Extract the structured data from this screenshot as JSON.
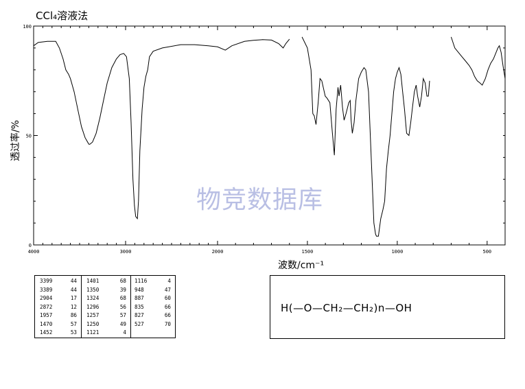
{
  "chart_data": {
    "type": "line",
    "title": "CCl₄溶液法",
    "xlabel": "波数/cm⁻¹",
    "ylabel": "透过率/%",
    "xlim": [
      4000,
      400
    ],
    "ylim": [
      0,
      100
    ],
    "x_ticks": [
      "4000",
      "3000",
      "2000",
      "1500",
      "1000",
      "500"
    ],
    "y_ticks": [
      "100",
      "50",
      "0"
    ],
    "series": [
      {
        "segments": [
          [
            [
              4000,
              91
            ],
            [
              3950,
              92.5
            ],
            [
              3850,
              93
            ],
            [
              3760,
              93
            ],
            [
              3720,
              90
            ],
            [
              3680,
              85
            ],
            [
              3650,
              80
            ],
            [
              3620,
              78
            ],
            [
              3600,
              76
            ],
            [
              3560,
              70
            ],
            [
              3520,
              62
            ],
            [
              3480,
              54
            ],
            [
              3440,
              49
            ],
            [
              3399,
              46
            ],
            [
              3389,
              46
            ],
            [
              3360,
              47
            ],
            [
              3320,
              51
            ],
            [
              3280,
              58
            ],
            [
              3240,
              66
            ],
            [
              3200,
              74
            ],
            [
              3150,
              81
            ],
            [
              3100,
              85
            ],
            [
              3060,
              87
            ],
            [
              3020,
              87.5
            ],
            [
              2990,
              86
            ],
            [
              2960,
              76
            ],
            [
              2940,
              56
            ],
            [
              2920,
              30
            ],
            [
              2904,
              18
            ],
            [
              2890,
              13
            ],
            [
              2872,
              12
            ],
            [
              2860,
              20
            ],
            [
              2845,
              43
            ],
            [
              2820,
              62
            ],
            [
              2800,
              72
            ],
            [
              2780,
              77
            ],
            [
              2760,
              80
            ],
            [
              2740,
              86
            ],
            [
              2700,
              88.5
            ],
            [
              2600,
              90
            ],
            [
              2400,
              91.5
            ],
            [
              2250,
              91.5
            ],
            [
              2100,
              91
            ],
            [
              2000,
              90.5
            ],
            [
              1957,
              89
            ],
            [
              1920,
              91
            ],
            [
              1850,
              93
            ],
            [
              1800,
              93.5
            ],
            [
              1750,
              93.8
            ],
            [
              1700,
              93.6
            ],
            [
              1660,
              92
            ],
            [
              1635,
              90
            ],
            [
              1620,
              92
            ],
            [
              1600,
              94
            ]
          ],
          [
            [
              1530,
              95
            ],
            [
              1500,
              90
            ],
            [
              1480,
              80
            ],
            [
              1470,
              60
            ],
            [
              1462,
              59
            ],
            [
              1452,
              55
            ],
            [
              1440,
              65
            ],
            [
              1430,
              76
            ],
            [
              1420,
              75
            ],
            [
              1401,
              68
            ],
            [
              1390,
              67
            ],
            [
              1375,
              65
            ],
            [
              1362,
              52
            ],
            [
              1350,
              41
            ],
            [
              1340,
              62
            ],
            [
              1330,
              72
            ],
            [
              1324,
              68
            ],
            [
              1315,
              73
            ],
            [
              1305,
              63
            ],
            [
              1296,
              57
            ],
            [
              1285,
              60
            ],
            [
              1270,
              65
            ],
            [
              1262,
              66
            ],
            [
              1257,
              57
            ],
            [
              1250,
              51
            ],
            [
              1240,
              56
            ],
            [
              1230,
              66
            ],
            [
              1215,
              76
            ],
            [
              1200,
              79
            ],
            [
              1185,
              81
            ],
            [
              1175,
              80
            ],
            [
              1160,
              70
            ],
            [
              1150,
              50
            ],
            [
              1140,
              30
            ],
            [
              1130,
              10
            ],
            [
              1121,
              5
            ],
            [
              1116,
              4
            ],
            [
              1105,
              4
            ],
            [
              1092,
              12
            ],
            [
              1080,
              16
            ],
            [
              1070,
              20
            ],
            [
              1060,
              35
            ],
            [
              1050,
              43
            ],
            [
              1040,
              50
            ],
            [
              1030,
              60
            ],
            [
              1020,
              70
            ],
            [
              1010,
              76
            ],
            [
              1000,
              79
            ],
            [
              990,
              81
            ],
            [
              980,
              78
            ],
            [
              970,
              70
            ],
            [
              960,
              62
            ],
            [
              948,
              51
            ],
            [
              935,
              50
            ],
            [
              925,
              56
            ],
            [
              915,
              63
            ],
            [
              905,
              70
            ],
            [
              895,
              73
            ],
            [
              887,
              68
            ],
            [
              875,
              63
            ],
            [
              865,
              68
            ],
            [
              855,
              76
            ],
            [
              845,
              74
            ],
            [
              835,
              68
            ],
            [
              827,
              68
            ],
            [
              820,
              75
            ]
          ],
          [
            [
              700,
              95
            ],
            [
              680,
              90
            ],
            [
              660,
              88
            ],
            [
              640,
              86
            ],
            [
              620,
              84
            ],
            [
              600,
              82
            ],
            [
              585,
              80
            ],
            [
              570,
              77
            ],
            [
              555,
              75
            ],
            [
              540,
              74
            ],
            [
              527,
              73
            ],
            [
              510,
              76
            ],
            [
              495,
              80
            ],
            [
              480,
              83
            ],
            [
              465,
              85
            ],
            [
              450,
              88
            ],
            [
              440,
              90
            ],
            [
              432,
              91
            ],
            [
              422,
              88
            ],
            [
              412,
              82
            ],
            [
              400,
              76
            ]
          ]
        ]
      }
    ],
    "peak_table": [
      [
        "3399",
        "44"
      ],
      [
        "3389",
        "44"
      ],
      [
        "2904",
        "17"
      ],
      [
        "2872",
        "12"
      ],
      [
        "1957",
        "86"
      ],
      [
        "1470",
        "57"
      ],
      [
        "1452",
        "53"
      ],
      [
        "1401",
        "68"
      ],
      [
        "1350",
        "39"
      ],
      [
        "1324",
        "68"
      ],
      [
        "1296",
        "56"
      ],
      [
        "1257",
        "57"
      ],
      [
        "1250",
        "49"
      ],
      [
        "1121",
        "4"
      ],
      [
        "1116",
        "4"
      ],
      [
        "948",
        "47"
      ],
      [
        "887",
        "60"
      ],
      [
        "835",
        "66"
      ],
      [
        "827",
        "66"
      ],
      [
        "527",
        "70"
      ]
    ],
    "structure": "H(—O—CH₂—CH₂)n—OH",
    "watermark": "物竞数据库",
    "grid": false,
    "line_color": "#000000"
  }
}
